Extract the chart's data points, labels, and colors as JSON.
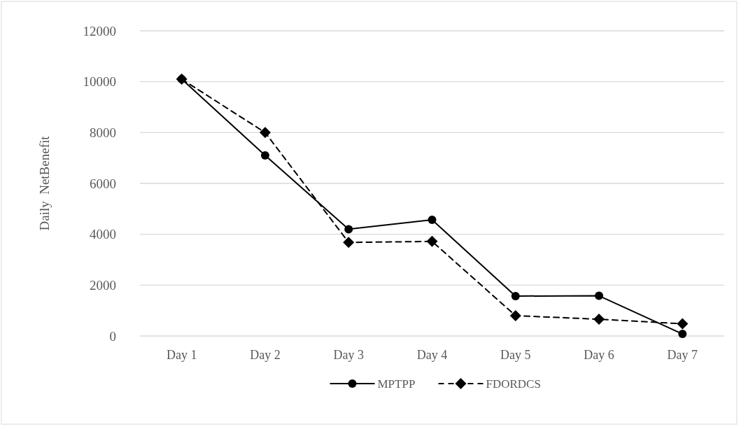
{
  "chart_data": {
    "type": "line",
    "ylabel": "Daily  NetBenefit",
    "categories": [
      "Day 1",
      "Day 2",
      "Day 3",
      "Day 4",
      "Day 5",
      "Day 6",
      "Day 7"
    ],
    "series": [
      {
        "name": "MPTPP",
        "color": "#000000",
        "marker": "circle",
        "line_style": "solid",
        "values": [
          10100,
          7100,
          4200,
          4570,
          1570,
          1580,
          80
        ]
      },
      {
        "name": "FDORDCS",
        "color": "#000000",
        "marker": "diamond",
        "line_style": "dashed",
        "values": [
          10100,
          8000,
          3680,
          3720,
          800,
          660,
          480
        ]
      }
    ],
    "ylim": [
      0,
      12000
    ],
    "yticks": [
      0,
      2000,
      4000,
      6000,
      8000,
      10000,
      12000
    ],
    "grid": "y",
    "legend": "bottom"
  }
}
